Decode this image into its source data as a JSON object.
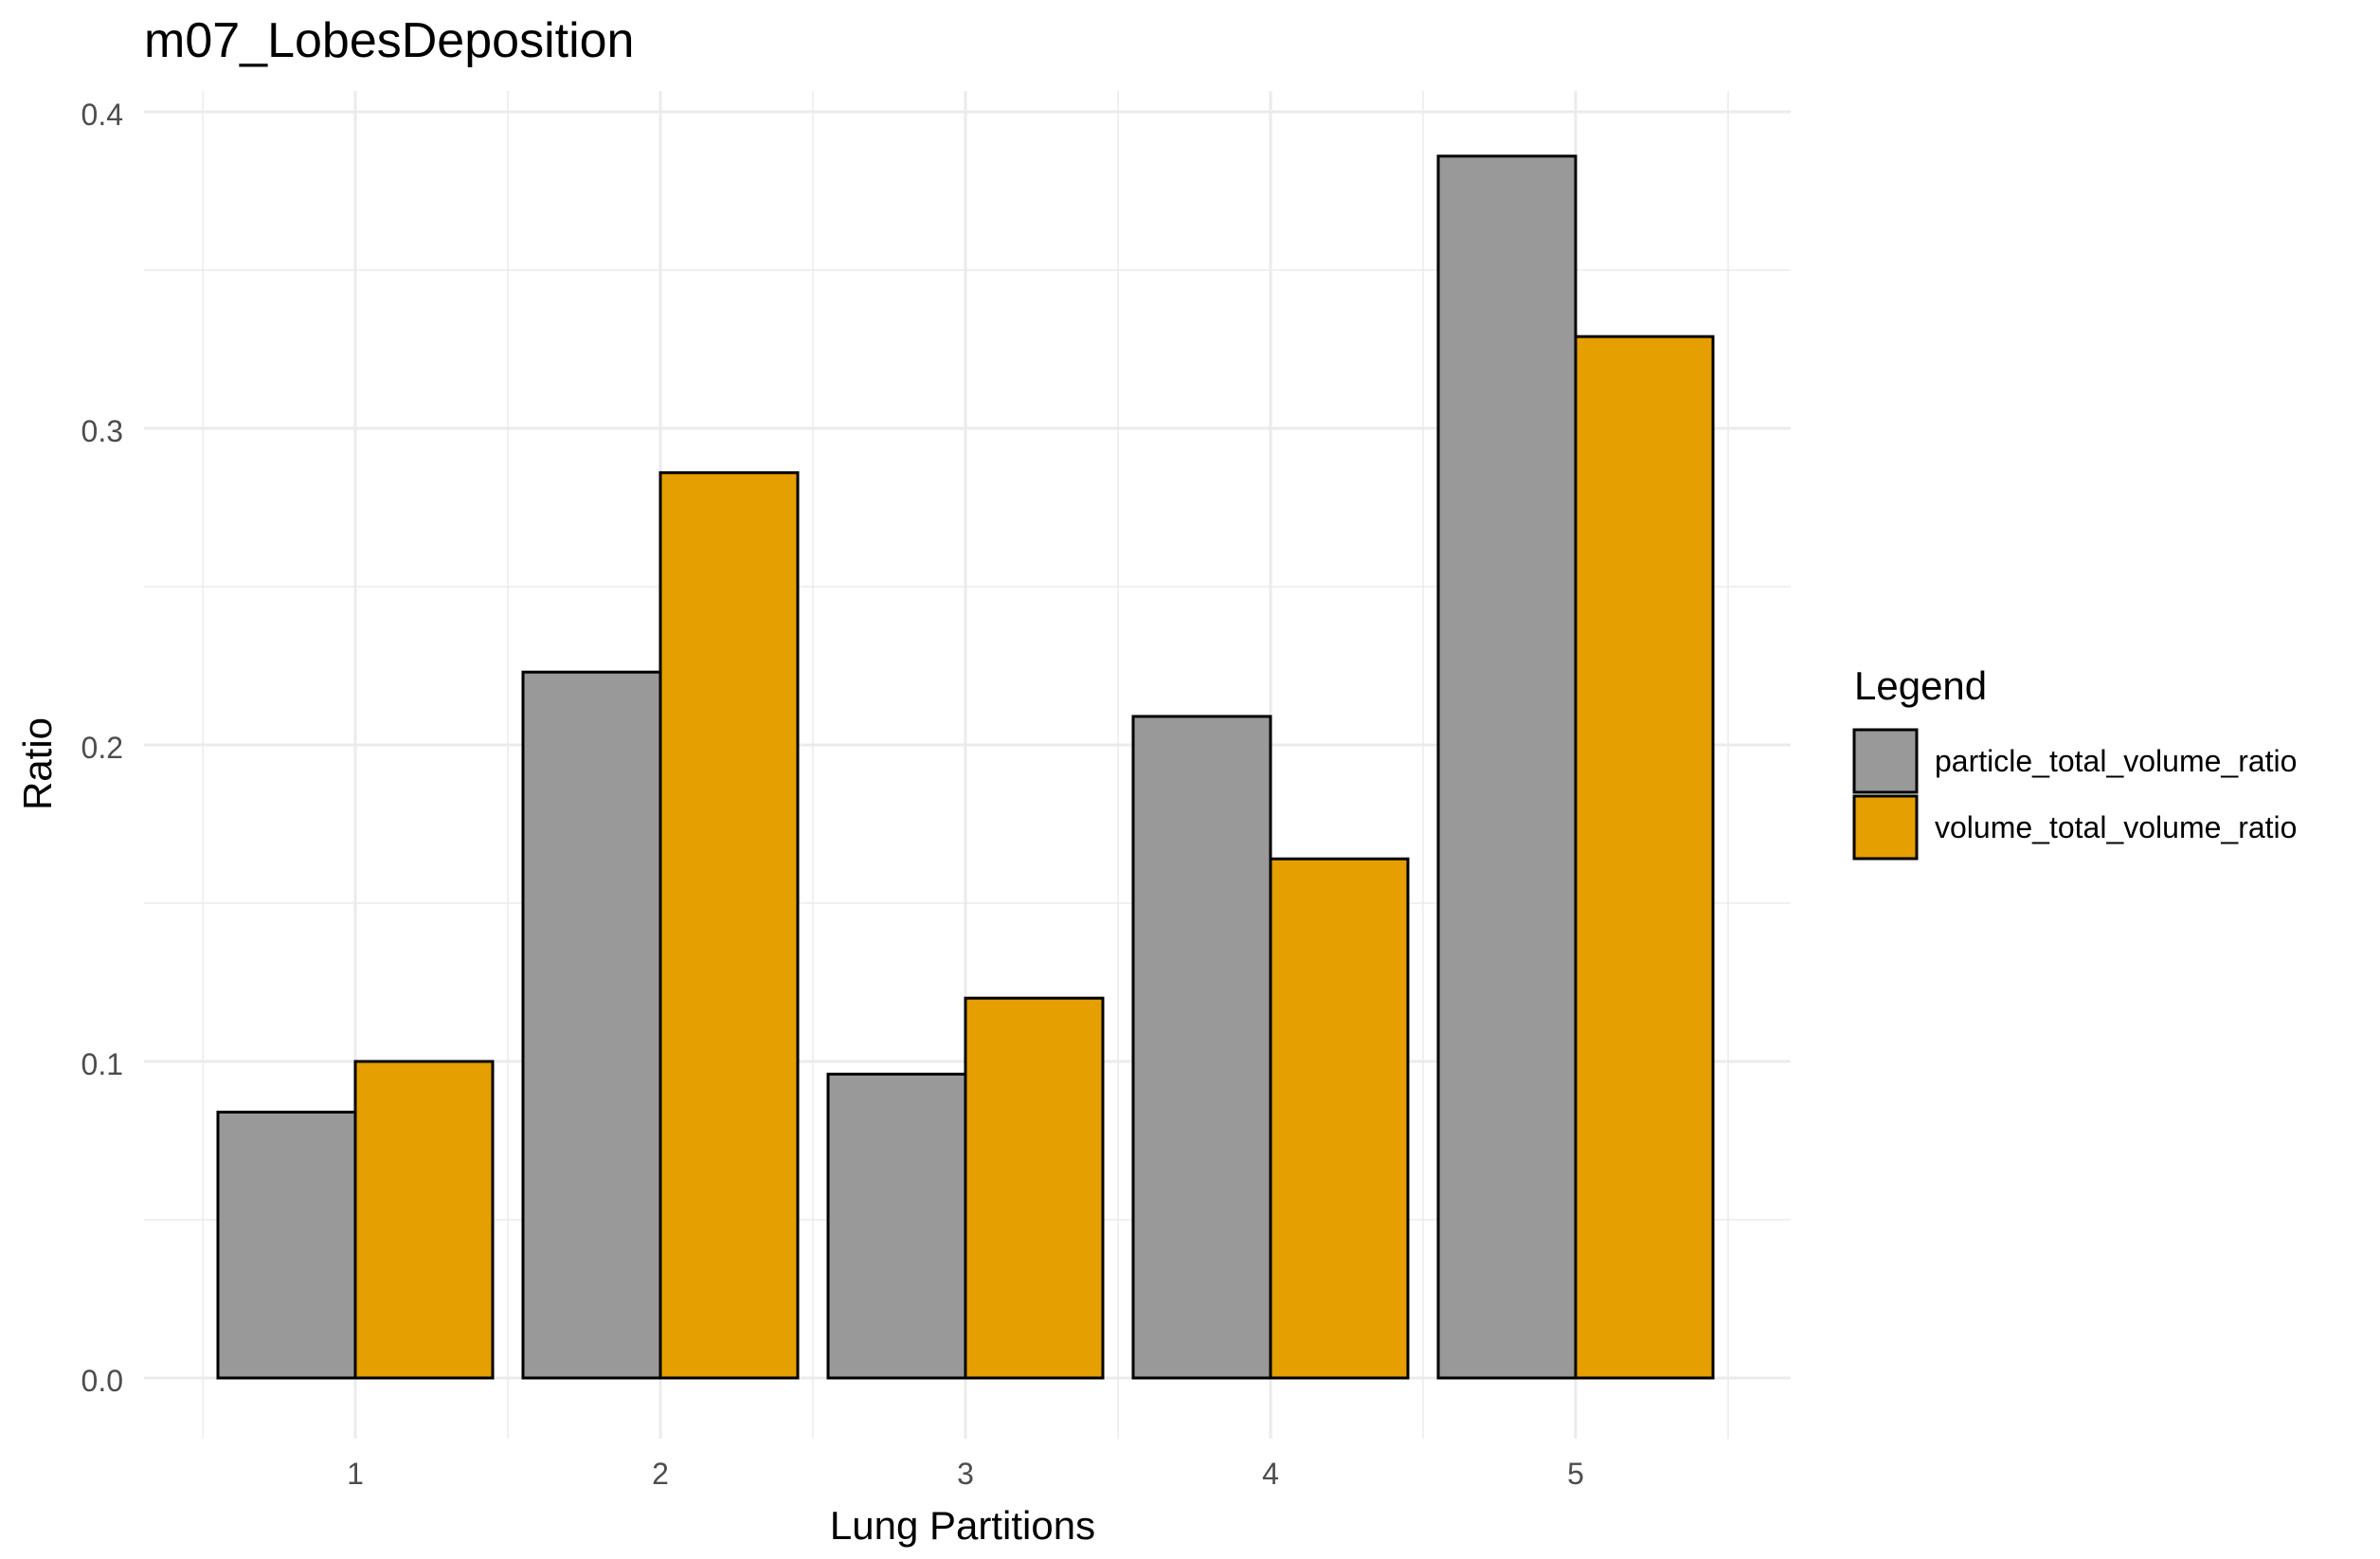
{
  "chart_data": {
    "type": "bar",
    "title": "m07_LobesDeposition",
    "xlabel": "Lung Partitions",
    "ylabel": "Ratio",
    "categories": [
      "1",
      "2",
      "3",
      "4",
      "5"
    ],
    "series": [
      {
        "name": "particle_total_volume_ratio",
        "color": "#999999",
        "values": [
          0.084,
          0.223,
          0.096,
          0.209,
          0.386
        ]
      },
      {
        "name": "volume_total_volume_ratio",
        "color": "#E69F00",
        "values": [
          0.1,
          0.286,
          0.12,
          0.164,
          0.329
        ]
      }
    ],
    "ylim": [
      -0.0125,
      0.4125
    ],
    "yticks": [
      0.0,
      0.1,
      0.2,
      0.3,
      0.4
    ],
    "ytick_labels": [
      "0.0",
      "0.1",
      "0.2",
      "0.3",
      "0.4"
    ],
    "grid": true,
    "legend": {
      "title": "Legend",
      "position": "right"
    }
  }
}
